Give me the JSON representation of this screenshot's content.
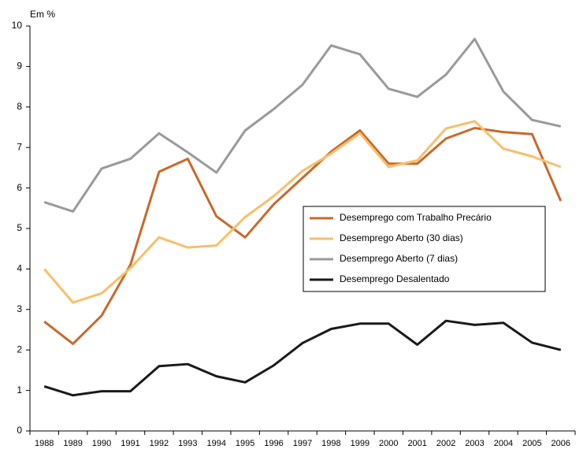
{
  "chart_data": {
    "type": "line",
    "y_label": "Em %",
    "categories": [
      "1988",
      "1989",
      "1990",
      "1991",
      "1992",
      "1993",
      "1994",
      "1995",
      "1996",
      "1997",
      "1998",
      "1999",
      "2000",
      "2001",
      "2002",
      "2003",
      "2004",
      "2005",
      "2006"
    ],
    "series": [
      {
        "name": "Desemprego com Trabalho Precário",
        "color": "#c8692a",
        "values": [
          2.7,
          2.15,
          2.85,
          4.1,
          6.4,
          6.72,
          5.3,
          4.78,
          5.6,
          6.25,
          6.9,
          7.42,
          6.6,
          6.6,
          7.22,
          7.48,
          7.38,
          7.33,
          5.68
        ]
      },
      {
        "name": "Desemprego Aberto (30 dias)",
        "color": "#f8bf6b",
        "values": [
          4.0,
          3.17,
          3.4,
          4.02,
          4.78,
          4.53,
          4.58,
          5.28,
          5.8,
          6.42,
          6.85,
          7.35,
          6.52,
          6.68,
          7.47,
          7.65,
          6.97,
          6.78,
          6.52
        ]
      },
      {
        "name": "Desemprego Aberto (7 dias)",
        "color": "#9a9a9a",
        "values": [
          5.65,
          5.42,
          6.48,
          6.72,
          7.35,
          6.88,
          6.38,
          7.42,
          7.95,
          8.55,
          9.52,
          9.3,
          8.45,
          8.25,
          8.8,
          9.68,
          8.38,
          7.68,
          7.52
        ]
      },
      {
        "name": "Desemprego Desalentado",
        "color": "#1a1a1a",
        "values": [
          1.1,
          0.88,
          0.98,
          0.98,
          1.6,
          1.65,
          1.35,
          1.2,
          1.62,
          2.17,
          2.52,
          2.65,
          2.65,
          2.13,
          2.72,
          2.62,
          2.67,
          2.18,
          2.0
        ]
      }
    ],
    "ylim": [
      0,
      10
    ],
    "yticks": [
      0,
      1,
      2,
      3,
      4,
      5,
      6,
      7,
      8,
      9,
      10
    ],
    "grid": false
  }
}
